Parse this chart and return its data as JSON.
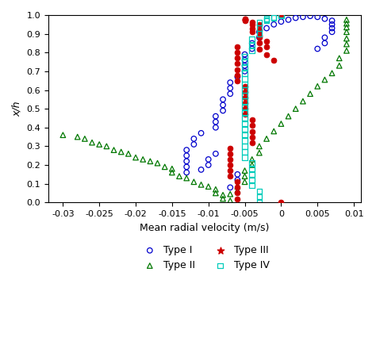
{
  "xlabel": "Mean radial velocity (m/s)",
  "ylabel": "x/h",
  "xlim": [
    -0.032,
    0.011
  ],
  "ylim": [
    0,
    1.0
  ],
  "xticks": [
    -0.03,
    -0.025,
    -0.02,
    -0.015,
    -0.01,
    -0.005,
    0,
    0.005,
    0.01
  ],
  "yticks": [
    0,
    0.1,
    0.2,
    0.3,
    0.4,
    0.5,
    0.6,
    0.7,
    0.8,
    0.9,
    1.0
  ],
  "type1_x": [
    -0.013,
    -0.013,
    -0.013,
    -0.013,
    -0.013,
    -0.012,
    -0.012,
    -0.011,
    -0.011,
    -0.01,
    -0.01,
    -0.009,
    -0.009,
    -0.009,
    -0.009,
    -0.008,
    -0.008,
    -0.008,
    -0.007,
    -0.007,
    -0.007,
    -0.007,
    -0.006,
    -0.006,
    -0.006,
    -0.005,
    -0.005,
    -0.005,
    -0.005,
    -0.004,
    -0.004,
    -0.003,
    -0.003,
    -0.002,
    -0.001,
    0.0,
    0.001,
    0.002,
    0.003,
    0.004,
    0.005,
    0.006,
    0.007,
    0.007,
    0.007,
    0.007,
    0.006,
    0.006,
    0.005
  ],
  "type1_y": [
    0.16,
    0.19,
    0.22,
    0.25,
    0.28,
    0.31,
    0.34,
    0.37,
    0.175,
    0.2,
    0.23,
    0.26,
    0.4,
    0.43,
    0.46,
    0.49,
    0.52,
    0.55,
    0.58,
    0.61,
    0.64,
    0.08,
    0.12,
    0.15,
    0.67,
    0.7,
    0.73,
    0.76,
    0.79,
    0.82,
    0.85,
    0.88,
    0.91,
    0.93,
    0.95,
    0.965,
    0.975,
    0.985,
    0.99,
    0.995,
    0.99,
    0.98,
    0.97,
    0.95,
    0.93,
    0.91,
    0.88,
    0.85,
    0.82
  ],
  "type2_x": [
    -0.03,
    -0.028,
    -0.027,
    -0.026,
    -0.025,
    -0.024,
    -0.023,
    -0.022,
    -0.021,
    -0.02,
    -0.019,
    -0.018,
    -0.017,
    -0.016,
    -0.015,
    -0.015,
    -0.014,
    -0.013,
    -0.012,
    -0.011,
    -0.01,
    -0.009,
    -0.009,
    -0.008,
    -0.008,
    -0.007,
    -0.007,
    -0.006,
    -0.006,
    -0.005,
    -0.005,
    -0.005,
    -0.004,
    -0.004,
    -0.003,
    -0.003,
    -0.002,
    -0.001,
    0.0,
    0.001,
    0.002,
    0.003,
    0.004,
    0.005,
    0.006,
    0.007,
    0.008,
    0.008,
    0.009,
    0.009,
    0.009,
    0.009,
    0.009,
    0.009,
    0.009
  ],
  "type2_y": [
    0.36,
    0.35,
    0.34,
    0.32,
    0.31,
    0.3,
    0.28,
    0.27,
    0.26,
    0.24,
    0.23,
    0.22,
    0.21,
    0.19,
    0.18,
    0.16,
    0.14,
    0.13,
    0.11,
    0.095,
    0.085,
    0.07,
    0.05,
    0.04,
    0.02,
    0.01,
    0.045,
    0.065,
    0.085,
    0.11,
    0.14,
    0.17,
    0.2,
    0.23,
    0.265,
    0.3,
    0.34,
    0.38,
    0.42,
    0.46,
    0.5,
    0.54,
    0.58,
    0.62,
    0.655,
    0.69,
    0.73,
    0.77,
    0.81,
    0.845,
    0.875,
    0.91,
    0.935,
    0.955,
    0.975
  ],
  "type3_x": [
    0.0,
    0.0,
    -0.002,
    -0.002,
    -0.003,
    -0.003,
    -0.003,
    -0.004,
    -0.004,
    -0.004,
    -0.004,
    -0.004,
    -0.005,
    -0.005,
    -0.005,
    -0.005,
    -0.005,
    -0.005,
    -0.006,
    -0.006,
    -0.006,
    -0.006,
    -0.006,
    -0.006,
    -0.006,
    -0.007,
    -0.007,
    -0.007,
    -0.007,
    -0.007,
    -0.007,
    -0.006,
    -0.006,
    -0.006,
    -0.006,
    -0.005,
    -0.005,
    -0.005,
    -0.005,
    -0.005,
    -0.004,
    -0.004,
    -0.004,
    -0.004,
    -0.003,
    -0.003,
    -0.003,
    -0.002,
    -0.001
  ],
  "type3_y": [
    0.0,
    1.0,
    0.83,
    0.86,
    0.89,
    0.92,
    0.95,
    0.32,
    0.35,
    0.38,
    0.41,
    0.44,
    0.47,
    0.5,
    0.53,
    0.56,
    0.59,
    0.62,
    0.65,
    0.68,
    0.71,
    0.74,
    0.77,
    0.8,
    0.83,
    0.14,
    0.17,
    0.2,
    0.23,
    0.26,
    0.29,
    0.02,
    0.05,
    0.08,
    0.11,
    0.97,
    0.975,
    0.98,
    0.98,
    0.975,
    0.96,
    0.95,
    0.93,
    0.91,
    0.88,
    0.85,
    0.82,
    0.79,
    0.76
  ],
  "type4_x": [
    -0.003,
    -0.003,
    -0.003,
    -0.004,
    -0.004,
    -0.004,
    -0.004,
    -0.004,
    -0.005,
    -0.005,
    -0.005,
    -0.005,
    -0.005,
    -0.005,
    -0.005,
    -0.005,
    -0.005,
    -0.005,
    -0.005,
    -0.005,
    -0.005,
    -0.005,
    -0.005,
    -0.005,
    -0.005,
    -0.005,
    -0.005,
    -0.004,
    -0.004,
    -0.004,
    -0.003,
    -0.003,
    -0.003,
    -0.002,
    -0.002,
    -0.002,
    -0.001,
    -0.001,
    0.0,
    0.0
  ],
  "type4_y": [
    0.0,
    0.03,
    0.06,
    0.09,
    0.12,
    0.15,
    0.18,
    0.21,
    0.24,
    0.27,
    0.3,
    0.33,
    0.36,
    0.39,
    0.42,
    0.45,
    0.48,
    0.51,
    0.54,
    0.57,
    0.6,
    0.63,
    0.66,
    0.69,
    0.72,
    0.75,
    0.78,
    0.81,
    0.84,
    0.87,
    0.9,
    0.93,
    0.96,
    0.97,
    0.975,
    0.98,
    0.985,
    0.99,
    0.995,
    1.0
  ],
  "color_type1": "#0000cc",
  "color_type2": "#007700",
  "color_type3": "#cc0000",
  "color_type4": "#00ccbb",
  "legend_labels": [
    "Type I",
    "Type II",
    "Type III",
    "Type IV"
  ]
}
